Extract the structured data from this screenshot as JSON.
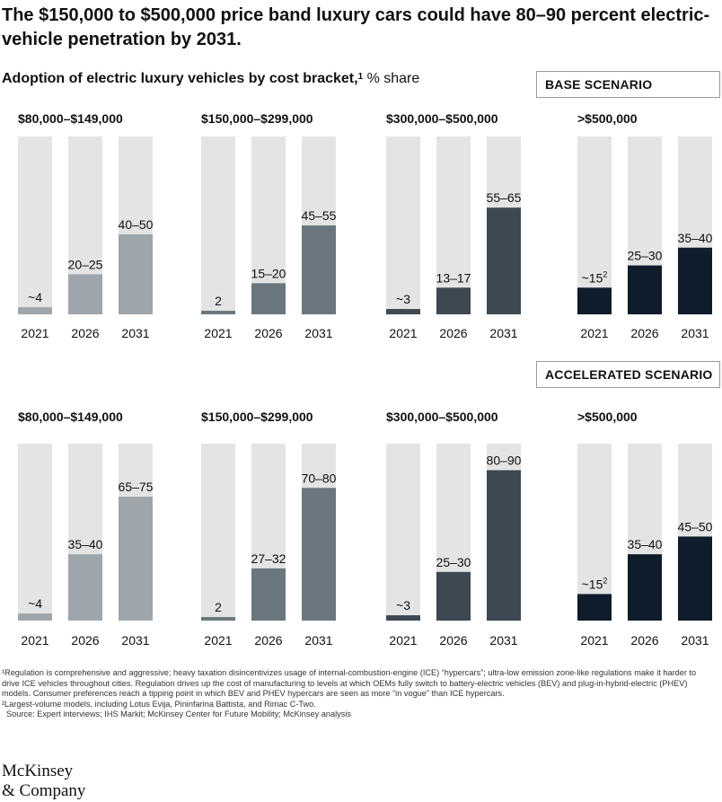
{
  "title": "The $150,000 to $500,000 price band luxury cars could have 80–90 percent electric-vehicle penetration by 2031.",
  "subtitle": {
    "text": "Adoption of electric luxury vehicles by cost bracket,",
    "footnote_mark": "1",
    "unit": "% share"
  },
  "scenarios": [
    {
      "label": "BASE SCENARIO"
    },
    {
      "label": "ACCELERATED SCENARIO"
    }
  ],
  "colors": {
    "background_bar": "#e4e4e4",
    "bracket_1": "#9ea5ab",
    "bracket_2": "#6a777e",
    "bracket_3": "#3d4853",
    "bracket_4": "#0e1c2c"
  },
  "chart_data": [
    {
      "type": "bar",
      "scenario": "BASE SCENARIO",
      "title": "$80,000–$149,000",
      "categories": [
        "2021",
        "2026",
        "2031"
      ],
      "values": [
        4,
        22.5,
        45
      ],
      "labels": [
        "~4",
        "20–25",
        "40–50"
      ],
      "ylim": [
        0,
        100
      ],
      "color_key": "bracket_1"
    },
    {
      "type": "bar",
      "scenario": "BASE SCENARIO",
      "title": "$150,000–$299,000",
      "categories": [
        "2021",
        "2026",
        "2031"
      ],
      "values": [
        2,
        17.5,
        50
      ],
      "labels": [
        "2",
        "15–20",
        "45–55"
      ],
      "ylim": [
        0,
        100
      ],
      "color_key": "bracket_2"
    },
    {
      "type": "bar",
      "scenario": "BASE SCENARIO",
      "title": "$300,000–$500,000",
      "categories": [
        "2021",
        "2026",
        "2031"
      ],
      "values": [
        3,
        15,
        60
      ],
      "labels": [
        "~3",
        "13–17",
        "55–65"
      ],
      "ylim": [
        0,
        100
      ],
      "color_key": "bracket_3"
    },
    {
      "type": "bar",
      "scenario": "BASE SCENARIO",
      "title": ">$500,000",
      "categories": [
        "2021",
        "2026",
        "2031"
      ],
      "values": [
        15,
        27.5,
        37.5
      ],
      "labels": [
        "~15",
        "25–30",
        "35–40"
      ],
      "label_footnotes": [
        "2",
        "",
        ""
      ],
      "ylim": [
        0,
        100
      ],
      "color_key": "bracket_4"
    },
    {
      "type": "bar",
      "scenario": "ACCELERATED SCENARIO",
      "title": "$80,000–$149,000",
      "categories": [
        "2021",
        "2026",
        "2031"
      ],
      "values": [
        4,
        37.5,
        70
      ],
      "labels": [
        "~4",
        "35–40",
        "65–75"
      ],
      "ylim": [
        0,
        100
      ],
      "color_key": "bracket_1"
    },
    {
      "type": "bar",
      "scenario": "ACCELERATED SCENARIO",
      "title": "$150,000–$299,000",
      "categories": [
        "2021",
        "2026",
        "2031"
      ],
      "values": [
        2,
        29.5,
        75
      ],
      "labels": [
        "2",
        "27–32",
        "70–80"
      ],
      "ylim": [
        0,
        100
      ],
      "color_key": "bracket_2"
    },
    {
      "type": "bar",
      "scenario": "ACCELERATED SCENARIO",
      "title": "$300,000–$500,000",
      "categories": [
        "2021",
        "2026",
        "2031"
      ],
      "values": [
        3,
        27.5,
        85
      ],
      "labels": [
        "~3",
        "25–30",
        "80–90"
      ],
      "ylim": [
        0,
        100
      ],
      "color_key": "bracket_3"
    },
    {
      "type": "bar",
      "scenario": "ACCELERATED SCENARIO",
      "title": ">$500,000",
      "categories": [
        "2021",
        "2026",
        "2031"
      ],
      "values": [
        15,
        37.5,
        47.5
      ],
      "labels": [
        "~15",
        "35–40",
        "45–50"
      ],
      "label_footnotes": [
        "2",
        "",
        ""
      ],
      "ylim": [
        0,
        100
      ],
      "color_key": "bracket_4"
    }
  ],
  "footnotes": [
    "¹Regulation is comprehensive and aggressive; heavy taxation disincentivizes usage of internal-combustion-engine (ICE) “hypercars”; ultra-low emission zone-like regulations make it harder to drive ICE vehicles throughout cities. Regulation drives up the cost of manufacturing to levels at which OEMs fully switch to battery-electric vehicles (BEV) and plug-in-hybrid-electric (PHEV) models. Consumer preferences reach a tipping point in which BEV and PHEV hypercars are seen as more “in vogue” than ICE hypercars.",
    "²Largest-volume models, including Lotus Evija, Pininfarina Battista, and Rimac C-Two.",
    "Source: Expert interviews; IHS Markit; McKinsey Center for Future Mobility; McKinsey analysis"
  ],
  "logo": {
    "line1": "McKinsey",
    "line2": "& Company"
  }
}
